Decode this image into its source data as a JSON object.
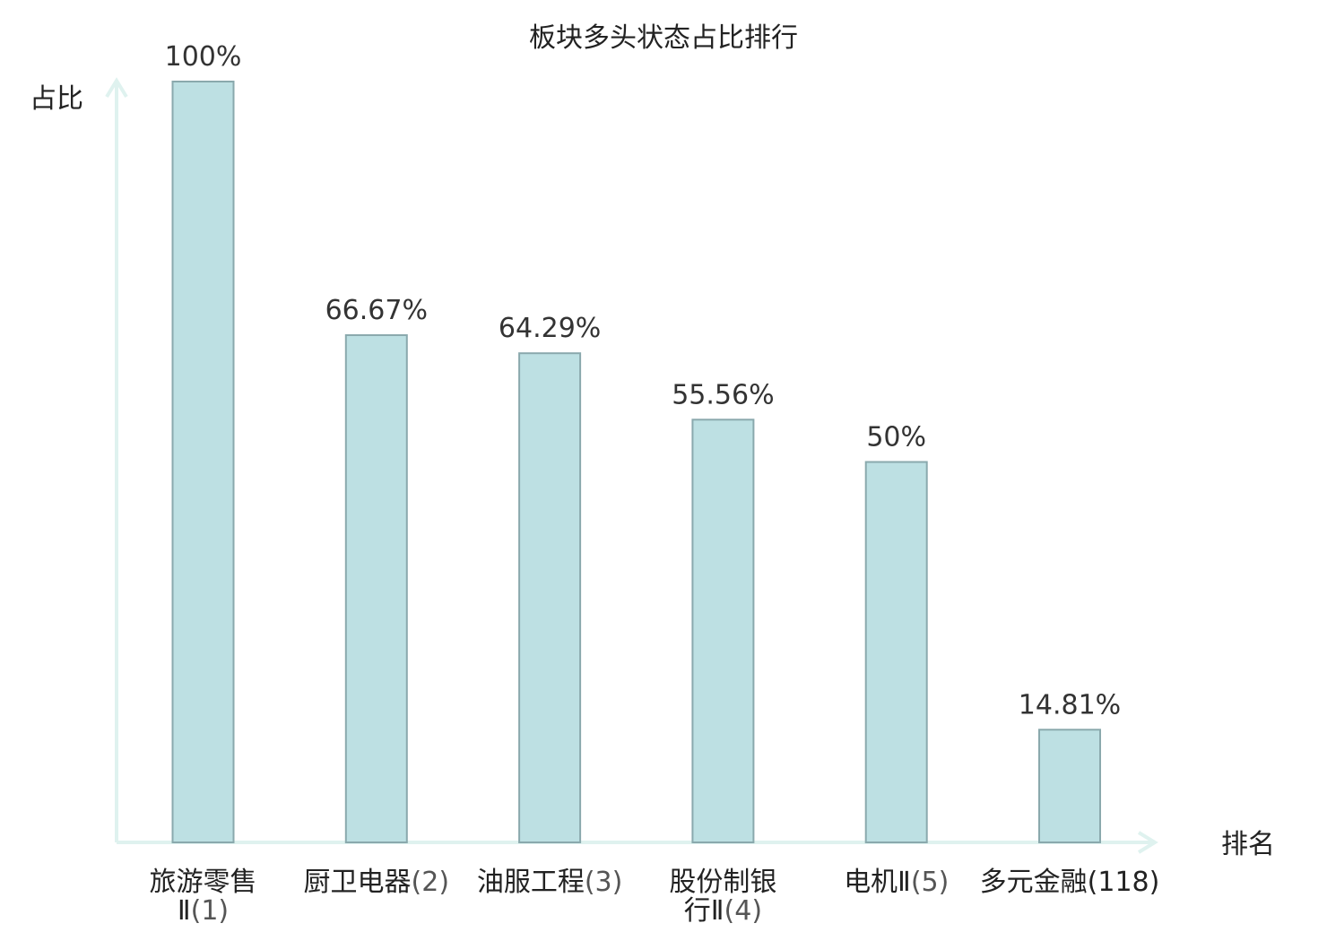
{
  "chart_data": {
    "type": "bar",
    "title": "板块多头状态占比排行",
    "ylabel": "占比",
    "xlabel": "排名",
    "ylim": [
      0,
      100
    ],
    "grid": false,
    "bar_color": "#bde0e3",
    "bar_border_color": "#8aa9ad",
    "axis_color": "#dff2ef",
    "highlight_color": "#e02020",
    "categories": [
      {
        "name": "旅游零售Ⅱ",
        "rank": "(1)",
        "lines": [
          [
            "旅游零售",
            ""
          ],
          [
            "Ⅱ",
            "(1)"
          ]
        ],
        "highlight": false
      },
      {
        "name": "厨卫电器",
        "rank": "(2)",
        "lines": [
          [
            "厨卫电器",
            "(2)"
          ]
        ],
        "highlight": false
      },
      {
        "name": "油服工程",
        "rank": "(3)",
        "lines": [
          [
            "油服工程",
            "(3)"
          ]
        ],
        "highlight": false
      },
      {
        "name": "股份制银行Ⅱ",
        "rank": "(4)",
        "lines": [
          [
            "股份制银",
            ""
          ],
          [
            "行Ⅱ",
            "(4)"
          ]
        ],
        "highlight": false
      },
      {
        "name": "电机Ⅱ",
        "rank": "(5)",
        "lines": [
          [
            "电机Ⅱ",
            "(5)"
          ]
        ],
        "highlight": false
      },
      {
        "name": "多元金融",
        "rank": "(118)",
        "lines": [
          [
            "多元金融",
            "(118)"
          ]
        ],
        "highlight": true
      }
    ],
    "values": [
      100,
      66.67,
      64.29,
      55.56,
      50,
      14.81
    ],
    "value_labels": [
      "100%",
      "66.67%",
      "64.29%",
      "55.56%",
      "50%",
      "14.81%"
    ]
  }
}
